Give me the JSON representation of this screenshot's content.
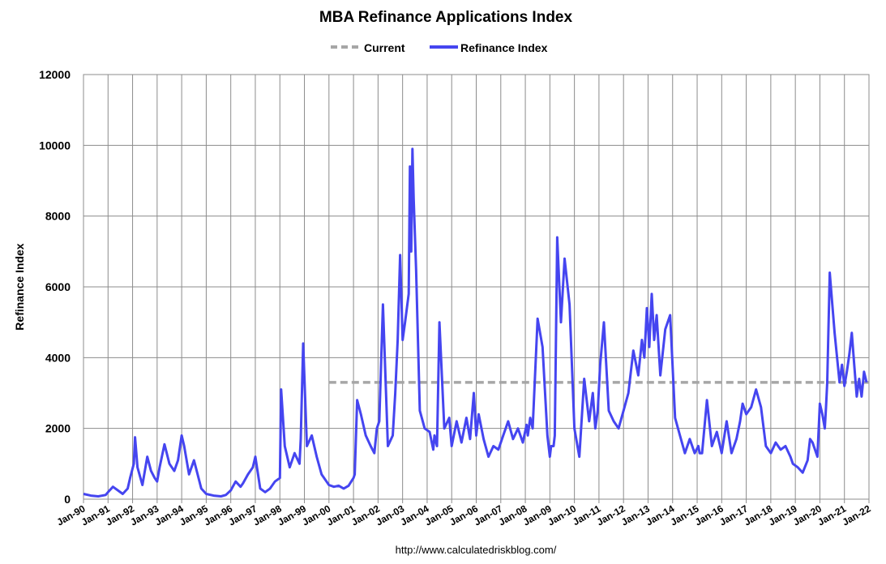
{
  "chart_data": {
    "type": "line",
    "title": "MBA Refinance Applications Index",
    "ylabel": "Refinance Index",
    "xlabel": "",
    "ylim": [
      0,
      12000
    ],
    "yticks": [
      "0",
      "2000",
      "4000",
      "6000",
      "8000",
      "10000",
      "12000"
    ],
    "xlim": [
      1990.0,
      2022.0
    ],
    "xticks": [
      "Jan-90",
      "Jan-91",
      "Jan-92",
      "Jan-93",
      "Jan-94",
      "Jan-95",
      "Jan-96",
      "Jan-97",
      "Jan-98",
      "Jan-99",
      "Jan-00",
      "Jan-01",
      "Jan-02",
      "Jan-03",
      "Jan-04",
      "Jan-05",
      "Jan-06",
      "Jan-07",
      "Jan-08",
      "Jan-09",
      "Jan-10",
      "Jan-11",
      "Jan-12",
      "Jan-13",
      "Jan-14",
      "Jan-15",
      "Jan-16",
      "Jan-17",
      "Jan-18",
      "Jan-19",
      "Jan-20",
      "Jan-21",
      "Jan-22"
    ],
    "grid": true,
    "legend_position": "top-center",
    "series": [
      {
        "name": "Current",
        "style": "dashed",
        "color": "#a6a6a6",
        "x": [
          2000.0,
          2022.0
        ],
        "y": [
          3300,
          3300
        ]
      },
      {
        "name": "Refinance Index",
        "style": "solid",
        "color": "#4545f0",
        "x": [
          1990.0,
          1990.3,
          1990.6,
          1990.9,
          1991.0,
          1991.2,
          1991.4,
          1991.6,
          1991.8,
          1991.9,
          1992.05,
          1992.1,
          1992.2,
          1992.4,
          1992.6,
          1992.75,
          1992.9,
          1993.0,
          1993.1,
          1993.3,
          1993.5,
          1993.7,
          1993.85,
          1994.0,
          1994.1,
          1994.3,
          1994.5,
          1994.8,
          1995.0,
          1995.3,
          1995.6,
          1995.8,
          1996.0,
          1996.2,
          1996.4,
          1996.5,
          1996.7,
          1996.9,
          1997.0,
          1997.2,
          1997.4,
          1997.6,
          1997.8,
          1998.0,
          1998.05,
          1998.2,
          1998.4,
          1998.6,
          1998.8,
          1998.85,
          1998.95,
          1999.1,
          1999.3,
          1999.5,
          1999.7,
          1999.9,
          2000.0,
          2000.2,
          2000.4,
          2000.6,
          2000.8,
          2001.0,
          2001.05,
          2001.15,
          2001.3,
          2001.5,
          2001.7,
          2001.85,
          2001.95,
          2002.05,
          2002.2,
          2002.4,
          2002.6,
          2002.7,
          2002.8,
          2002.9,
          2003.0,
          2003.1,
          2003.25,
          2003.3,
          2003.35,
          2003.4,
          2003.45,
          2003.55,
          2003.7,
          2003.9,
          2004.1,
          2004.25,
          2004.3,
          2004.4,
          2004.5,
          2004.7,
          2004.9,
          2005.0,
          2005.2,
          2005.4,
          2005.6,
          2005.75,
          2005.9,
          2006.0,
          2006.1,
          2006.3,
          2006.5,
          2006.7,
          2006.9,
          2007.1,
          2007.3,
          2007.5,
          2007.7,
          2007.9,
          2008.05,
          2008.1,
          2008.2,
          2008.3,
          2008.5,
          2008.7,
          2008.9,
          2009.0,
          2009.05,
          2009.15,
          2009.2,
          2009.3,
          2009.45,
          2009.6,
          2009.8,
          2010.0,
          2010.2,
          2010.4,
          2010.6,
          2010.75,
          2010.85,
          2010.95,
          2011.05,
          2011.2,
          2011.4,
          2011.6,
          2011.8,
          2012.0,
          2012.2,
          2012.4,
          2012.6,
          2012.75,
          2012.85,
          2012.95,
          2013.05,
          2013.15,
          2013.25,
          2013.35,
          2013.5,
          2013.7,
          2013.9,
          2014.1,
          2014.3,
          2014.5,
          2014.7,
          2014.9,
          2015.05,
          2015.1,
          2015.2,
          2015.4,
          2015.6,
          2015.8,
          2016.0,
          2016.2,
          2016.4,
          2016.6,
          2016.75,
          2016.85,
          2017.0,
          2017.2,
          2017.4,
          2017.6,
          2017.8,
          2018.0,
          2018.2,
          2018.4,
          2018.6,
          2018.8,
          2018.9,
          2019.1,
          2019.3,
          2019.5,
          2019.6,
          2019.7,
          2019.9,
          2020.0,
          2020.1,
          2020.2,
          2020.25,
          2020.3,
          2020.4,
          2020.6,
          2020.8,
          2020.9,
          2021.0,
          2021.1,
          2021.2,
          2021.3,
          2021.4,
          2021.5,
          2021.6,
          2021.7,
          2021.8,
          2021.9
        ],
        "y": [
          150,
          100,
          80,
          120,
          200,
          350,
          250,
          150,
          300,
          600,
          1000,
          1750,
          900,
          400,
          1200,
          800,
          600,
          500,
          900,
          1550,
          1000,
          800,
          1100,
          1800,
          1500,
          700,
          1100,
          300,
          150,
          100,
          80,
          120,
          250,
          500,
          350,
          450,
          700,
          900,
          1200,
          300,
          200,
          300,
          500,
          600,
          3100,
          1500,
          900,
          1300,
          1000,
          1700,
          4400,
          1500,
          1800,
          1200,
          700,
          500,
          400,
          350,
          380,
          300,
          380,
          600,
          700,
          2800,
          2400,
          1800,
          1500,
          1300,
          2000,
          2200,
          5500,
          1500,
          1800,
          3000,
          4500,
          6900,
          4500,
          5000,
          5800,
          9400,
          7000,
          9900,
          8500,
          6500,
          2500,
          2000,
          1900,
          1400,
          1800,
          1500,
          5000,
          2000,
          2300,
          1500,
          2200,
          1600,
          2300,
          1700,
          3000,
          1800,
          2400,
          1700,
          1200,
          1500,
          1400,
          1800,
          2200,
          1700,
          2000,
          1600,
          2100,
          1800,
          2300,
          2000,
          5100,
          4300,
          1800,
          1200,
          1500,
          1500,
          1800,
          7400,
          5000,
          6800,
          5500,
          2000,
          1200,
          3400,
          2200,
          3000,
          2000,
          2500,
          3800,
          5000,
          2500,
          2200,
          2000,
          2500,
          3000,
          4200,
          3500,
          4500,
          4000,
          5400,
          4300,
          5800,
          4500,
          5200,
          3500,
          4800,
          5200,
          2300,
          1800,
          1300,
          1700,
          1300,
          1500,
          1300,
          1300,
          2800,
          1500,
          1900,
          1300,
          2200,
          1300,
          1700,
          2200,
          2700,
          2400,
          2600,
          3100,
          2600,
          1500,
          1300,
          1600,
          1400,
          1500,
          1200,
          1000,
          900,
          750,
          1100,
          1700,
          1600,
          1200,
          2700,
          2400,
          2000,
          2600,
          3300,
          6400,
          4700,
          3300,
          3800,
          3200,
          3600,
          4100,
          4700,
          3800,
          2900,
          3400,
          2900,
          3600,
          3300
        ]
      }
    ]
  },
  "source_url": "http://www.calculatedriskblog.com/"
}
